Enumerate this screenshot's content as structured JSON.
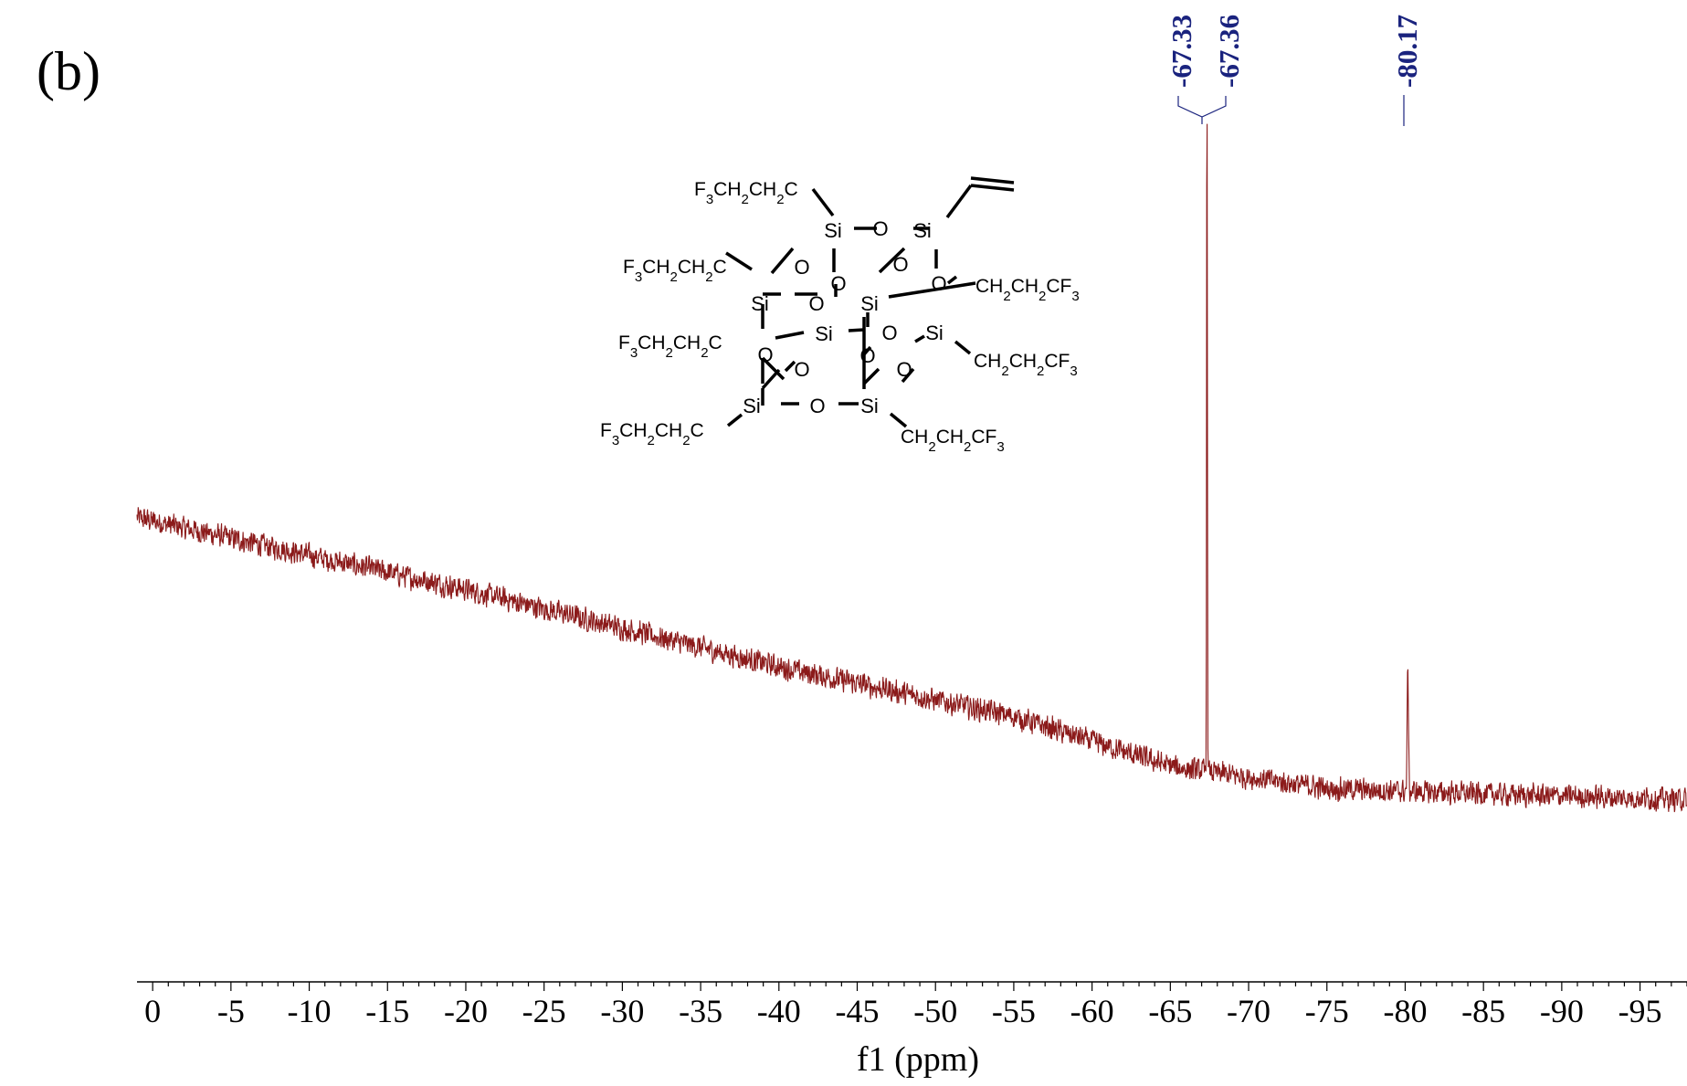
{
  "panel_label": "(b)",
  "chart_data": {
    "type": "line",
    "title": "",
    "xlabel": "f1 (ppm)",
    "ylabel": "",
    "xlim": [
      1,
      -98
    ],
    "x_reversed": true,
    "grid": false,
    "x_ticks": [
      0,
      -5,
      -10,
      -15,
      -20,
      -25,
      -30,
      -35,
      -40,
      -45,
      -50,
      -55,
      -60,
      -65,
      -70,
      -75,
      -80,
      -85,
      -90,
      -95
    ],
    "x_tick_labels": [
      "0",
      "-5",
      "-10",
      "-15",
      "-20",
      "-25",
      "-30",
      "-35",
      "-40",
      "-45",
      "-50",
      "-55",
      "-60",
      "-65",
      "-70",
      "-75",
      "-80",
      "-85",
      "-90",
      "-95"
    ],
    "series": [
      {
        "color": "#8b1a1a",
        "baseline": [
          [
            1,
            0.65
          ],
          [
            -20,
            0.52
          ],
          [
            -40,
            0.38
          ],
          [
            -55,
            0.29
          ],
          [
            -65,
            0.2
          ],
          [
            -75,
            0.16
          ],
          [
            -85,
            0.15
          ],
          [
            -98,
            0.14
          ]
        ],
        "noise_amplitude": 0.025,
        "peaks": [
          {
            "ppm": -67.33,
            "height": 1.0
          },
          {
            "ppm": -67.36,
            "height": 0.72
          },
          {
            "ppm": -80.17,
            "height": 0.23
          }
        ]
      }
    ],
    "peak_labels": [
      {
        "text": "-67.33",
        "ppm": -67.33
      },
      {
        "text": "-67.36",
        "ppm": -67.36
      },
      {
        "text": "-80.17",
        "ppm": -80.17
      }
    ],
    "peak_label_color": "#1a237e",
    "structure_labels": {
      "si": "Si",
      "o": "O",
      "sub_left": [
        "F",
        "3",
        "CH",
        "2",
        "CH",
        "2",
        "C"
      ],
      "sub_right": [
        "CH",
        "2",
        "CH",
        "2",
        "CF",
        "3"
      ]
    }
  }
}
